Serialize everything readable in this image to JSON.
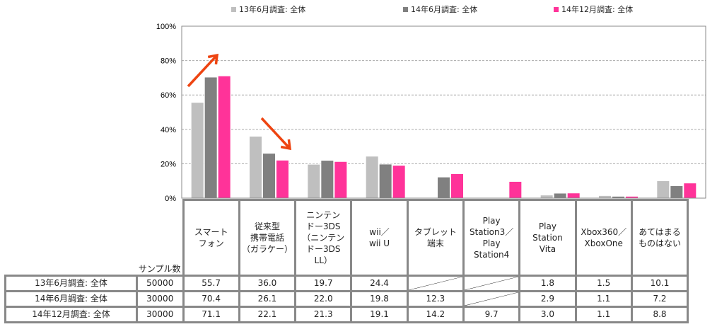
{
  "chart_data": {
    "type": "bar",
    "title": "",
    "xlabel": "",
    "ylabel": "",
    "ylim": [
      0,
      100
    ],
    "yticks": [
      "0%",
      "20%",
      "40%",
      "60%",
      "80%",
      "100%"
    ],
    "ytick_values": [
      0,
      20,
      40,
      60,
      80,
      100
    ],
    "grid": true,
    "legend_position": "top",
    "categories": [
      "スマート\nフォン",
      "従来型\n携帯電話\n（ガラケー）",
      "ニンテン\nドー3DS\n（ニンテン\nドー3DS\nLL）",
      "wii／\nwii U",
      "タブレット\n端末",
      "Play\nStation3／\nPlay\nStation4",
      "Play\nStation\nVita",
      "Xbox360／\nXboxOne",
      "あてはまる\nものはない"
    ],
    "series": [
      {
        "name": "13年6月調査: 全体",
        "color": "#bfbfbf",
        "sample": "50000",
        "values": [
          55.7,
          36.0,
          19.7,
          24.4,
          null,
          null,
          1.8,
          1.5,
          10.1
        ]
      },
      {
        "name": "14年6月調査: 全体",
        "color": "#808080",
        "sample": "30000",
        "values": [
          70.4,
          26.1,
          22.0,
          19.8,
          12.3,
          null,
          2.9,
          1.1,
          7.2
        ]
      },
      {
        "name": "14年12月調査: 全体",
        "color": "#ff3399",
        "sample": "30000",
        "values": [
          71.1,
          22.1,
          21.3,
          19.1,
          14.2,
          9.7,
          3.0,
          1.1,
          8.8
        ]
      }
    ],
    "annotations": [
      {
        "type": "arrow",
        "direction": "up",
        "category": "スマートフォン",
        "color": "#ee4411"
      },
      {
        "type": "arrow",
        "direction": "down",
        "category": "従来型携帯電話",
        "color": "#ee4411"
      }
    ]
  },
  "table": {
    "sample_header": "サンプル数",
    "rows": [
      {
        "label": "13年6月調査: 全体",
        "sample": "50000",
        "cells": [
          "55.7",
          "36.0",
          "19.7",
          "24.4",
          "",
          "",
          "1.8",
          "1.5",
          "10.1"
        ]
      },
      {
        "label": "14年6月調査: 全体",
        "sample": "30000",
        "cells": [
          "70.4",
          "26.1",
          "22.0",
          "19.8",
          "12.3",
          "",
          "2.9",
          "1.1",
          "7.2"
        ]
      },
      {
        "label": "14年12月調査: 全体",
        "sample": "30000",
        "cells": [
          "71.1",
          "22.1",
          "21.3",
          "19.1",
          "14.2",
          "9.7",
          "3.0",
          "1.1",
          "8.8"
        ]
      }
    ]
  }
}
